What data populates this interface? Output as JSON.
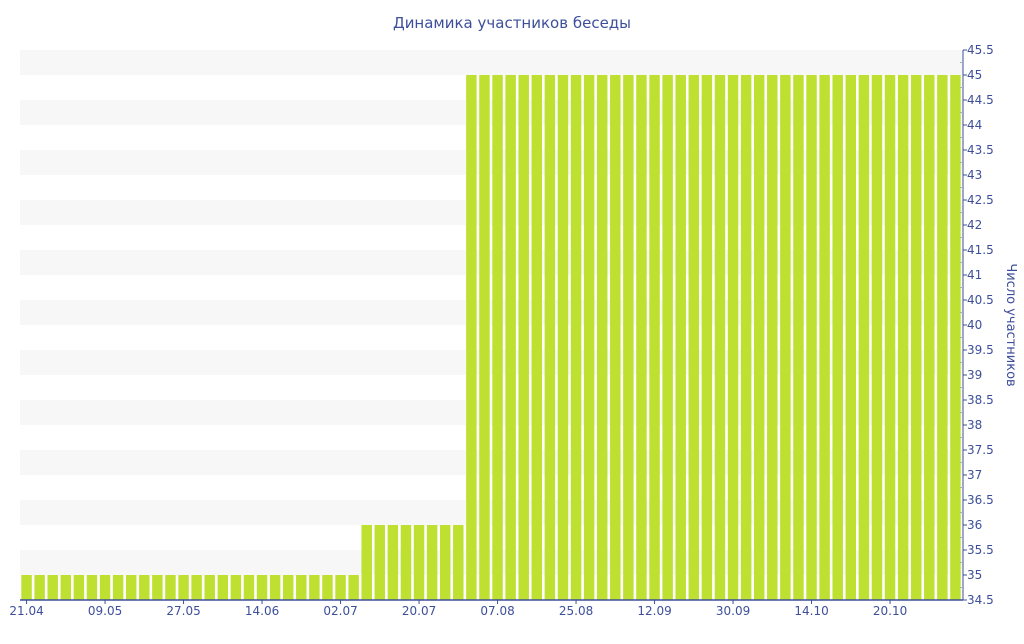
{
  "chart_data": {
    "type": "bar",
    "title": "Динамика участников беседы",
    "xlabel": "",
    "ylabel": "Число участников",
    "ylim": [
      34.5,
      45.5
    ],
    "ytick_step": 0.5,
    "grid": "alternating horizontal bands",
    "y_axis_side": "right",
    "bar_color": "#bde031",
    "axis_color": "#3d4f9a",
    "band_color": "#f7f7f7",
    "values": [
      35,
      35,
      35,
      35,
      35,
      35,
      35,
      35,
      35,
      35,
      35,
      35,
      35,
      35,
      35,
      35,
      35,
      35,
      35,
      35,
      35,
      35,
      35,
      35,
      35,
      35,
      36,
      36,
      36,
      36,
      36,
      36,
      36,
      36,
      45,
      45,
      45,
      45,
      45,
      45,
      45,
      45,
      45,
      45,
      45,
      45,
      45,
      45,
      45,
      45,
      45,
      45,
      45,
      45,
      45,
      45,
      45,
      45,
      45,
      45,
      45,
      45,
      45,
      45,
      45,
      45,
      45,
      45,
      45,
      45,
      45,
      45
    ],
    "x_tick_labels": [
      {
        "index": 0,
        "label": "21.04"
      },
      {
        "index": 6,
        "label": "09.05"
      },
      {
        "index": 12,
        "label": "27.05"
      },
      {
        "index": 18,
        "label": "14.06"
      },
      {
        "index": 24,
        "label": "02.07"
      },
      {
        "index": 30,
        "label": "20.07"
      },
      {
        "index": 36,
        "label": "07.08"
      },
      {
        "index": 42,
        "label": "25.08"
      },
      {
        "index": 48,
        "label": "12.09"
      },
      {
        "index": 54,
        "label": "30.09"
      },
      {
        "index": 60,
        "label": "14.10"
      },
      {
        "index": 66,
        "label": "20.10"
      }
    ]
  }
}
